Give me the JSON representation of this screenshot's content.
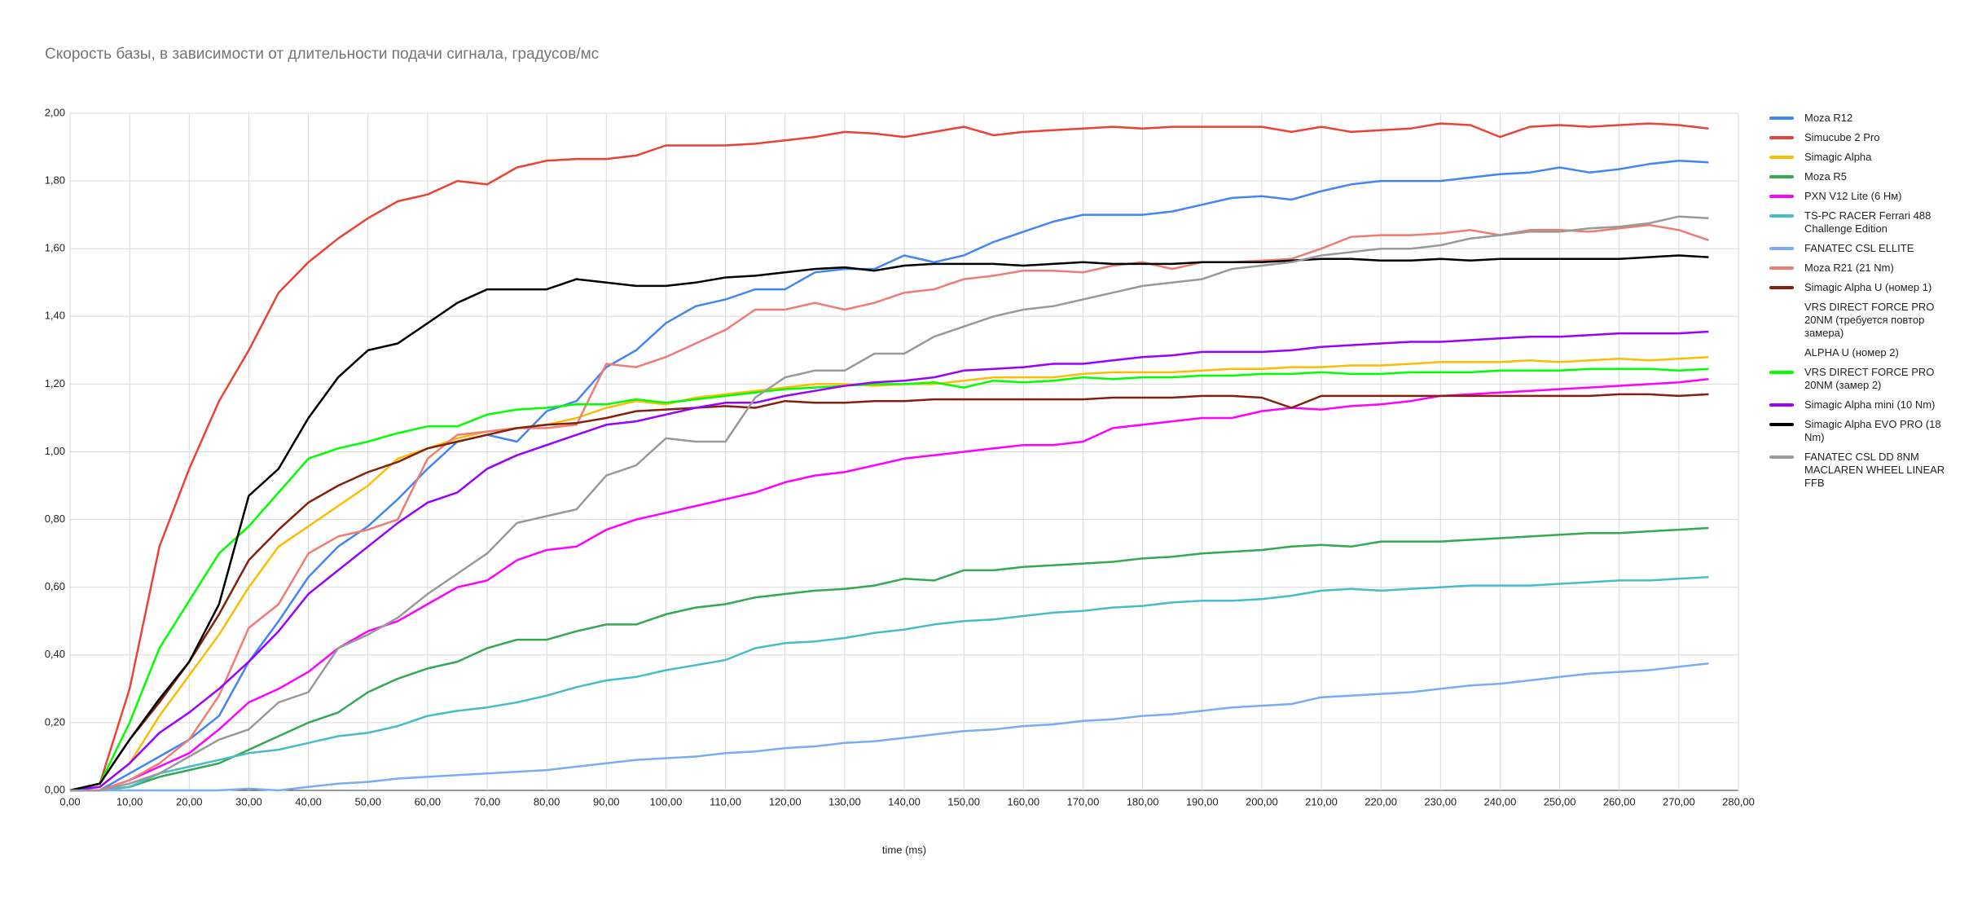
{
  "chart_data": {
    "type": "line",
    "title": "Скорость базы, в зависимости от длительности подачи сигнала, градусов/мс",
    "x_label": "time (ms)",
    "x": [
      0,
      5,
      10,
      15,
      20,
      25,
      30,
      35,
      40,
      45,
      50,
      55,
      60,
      65,
      70,
      75,
      80,
      85,
      90,
      95,
      100,
      105,
      110,
      115,
      120,
      125,
      130,
      135,
      140,
      145,
      150,
      155,
      160,
      165,
      170,
      175,
      180,
      185,
      190,
      195,
      200,
      205,
      210,
      215,
      220,
      225,
      230,
      235,
      240,
      245,
      250,
      255,
      260,
      265,
      270,
      275
    ],
    "xlim": [
      0,
      280
    ],
    "xticks": [
      {
        "value": 0,
        "label": "0,00"
      },
      {
        "value": 10,
        "label": "10,00"
      },
      {
        "value": 20,
        "label": "20,00"
      },
      {
        "value": 30,
        "label": "30,00"
      },
      {
        "value": 40,
        "label": "40,00"
      },
      {
        "value": 50,
        "label": "50,00"
      },
      {
        "value": 60,
        "label": "60,00"
      },
      {
        "value": 70,
        "label": "70,00"
      },
      {
        "value": 80,
        "label": "80,00"
      },
      {
        "value": 90,
        "label": "90,00"
      },
      {
        "value": 100,
        "label": "100,00"
      },
      {
        "value": 110,
        "label": "110,00"
      },
      {
        "value": 120,
        "label": "120,00"
      },
      {
        "value": 130,
        "label": "130,00"
      },
      {
        "value": 140,
        "label": "140,00"
      },
      {
        "value": 150,
        "label": "150,00"
      },
      {
        "value": 160,
        "label": "160,00"
      },
      {
        "value": 170,
        "label": "170,00"
      },
      {
        "value": 180,
        "label": "180,00"
      },
      {
        "value": 190,
        "label": "190,00"
      },
      {
        "value": 200,
        "label": "200,00"
      },
      {
        "value": 210,
        "label": "210,00"
      },
      {
        "value": 220,
        "label": "220,00"
      },
      {
        "value": 230,
        "label": "230,00"
      },
      {
        "value": 240,
        "label": "240,00"
      },
      {
        "value": 250,
        "label": "250,00"
      },
      {
        "value": 260,
        "label": "260,00"
      },
      {
        "value": 270,
        "label": "270,00"
      },
      {
        "value": 280,
        "label": "280,00"
      }
    ],
    "ylim": [
      0,
      2
    ],
    "yticks": [
      {
        "value": 0,
        "label": "0,00"
      },
      {
        "value": 0.2,
        "label": "0,20"
      },
      {
        "value": 0.4,
        "label": "0,40"
      },
      {
        "value": 0.6,
        "label": "0,60"
      },
      {
        "value": 0.8,
        "label": "0,80"
      },
      {
        "value": 1,
        "label": "1,00"
      },
      {
        "value": 1.2,
        "label": "1,20"
      },
      {
        "value": 1.4,
        "label": "1,40"
      },
      {
        "value": 1.6,
        "label": "1,60"
      },
      {
        "value": 1.8,
        "label": "1,80"
      },
      {
        "value": 2,
        "label": "2,00"
      }
    ],
    "grid": true,
    "legend": "right",
    "series": [
      {
        "name": "Moza R12",
        "color": "#4285f4",
        "values": [
          0,
          0,
          0.05,
          0.1,
          0.15,
          0.22,
          0.38,
          0.5,
          0.63,
          0.72,
          0.78,
          0.86,
          0.95,
          1.03,
          1.05,
          1.03,
          1.12,
          1.15,
          1.25,
          1.3,
          1.38,
          1.43,
          1.45,
          1.48,
          1.48,
          1.53,
          1.54,
          1.54,
          1.58,
          1.56,
          1.58,
          1.62,
          1.65,
          1.68,
          1.7,
          1.7,
          1.7,
          1.71,
          1.73,
          1.75,
          1.755,
          1.745,
          1.77,
          1.79,
          1.8,
          1.8,
          1.8,
          1.81,
          1.82,
          1.825,
          1.84,
          1.825,
          1.835,
          1.85,
          1.86,
          1.855
        ]
      },
      {
        "name": "Simucube 2 Pro",
        "color": "#ea4335",
        "values": [
          0,
          0.02,
          0.3,
          0.72,
          0.95,
          1.15,
          1.3,
          1.47,
          1.56,
          1.63,
          1.69,
          1.74,
          1.76,
          1.8,
          1.79,
          1.84,
          1.86,
          1.865,
          1.865,
          1.875,
          1.905,
          1.905,
          1.905,
          1.91,
          1.92,
          1.93,
          1.945,
          1.94,
          1.93,
          1.945,
          1.96,
          1.935,
          1.945,
          1.95,
          1.955,
          1.96,
          1.955,
          1.96,
          1.96,
          1.96,
          1.96,
          1.945,
          1.96,
          1.945,
          1.95,
          1.955,
          1.97,
          1.965,
          1.93,
          1.96,
          1.965,
          1.96,
          1.965,
          1.97,
          1.965,
          1.955
        ]
      },
      {
        "name": "Simagic Alpha",
        "color": "#fbbc04",
        "values": [
          0,
          0.01,
          0.08,
          0.22,
          0.34,
          0.46,
          0.6,
          0.72,
          0.78,
          0.84,
          0.9,
          0.98,
          1.01,
          1.04,
          1.06,
          1.07,
          1.08,
          1.1,
          1.13,
          1.15,
          1.14,
          1.16,
          1.17,
          1.18,
          1.19,
          1.2,
          1.2,
          1.195,
          1.2,
          1.2,
          1.21,
          1.22,
          1.22,
          1.22,
          1.23,
          1.235,
          1.235,
          1.235,
          1.24,
          1.245,
          1.245,
          1.25,
          1.25,
          1.255,
          1.255,
          1.26,
          1.265,
          1.265,
          1.265,
          1.27,
          1.265,
          1.27,
          1.275,
          1.27,
          1.275,
          1.28
        ]
      },
      {
        "name": "Moza R5",
        "color": "#34a853",
        "values": [
          0,
          0,
          0.01,
          0.04,
          0.06,
          0.08,
          0.12,
          0.16,
          0.2,
          0.23,
          0.29,
          0.33,
          0.36,
          0.38,
          0.42,
          0.445,
          0.445,
          0.47,
          0.49,
          0.49,
          0.52,
          0.54,
          0.55,
          0.57,
          0.58,
          0.59,
          0.595,
          0.605,
          0.625,
          0.62,
          0.65,
          0.65,
          0.66,
          0.665,
          0.67,
          0.675,
          0.685,
          0.69,
          0.7,
          0.705,
          0.71,
          0.72,
          0.725,
          0.72,
          0.735,
          0.735,
          0.735,
          0.74,
          0.745,
          0.75,
          0.755,
          0.76,
          0.76,
          0.765,
          0.77,
          0.775
        ]
      },
      {
        "name": "PXN V12 Lite (6 Нм)",
        "color": "#ff00ff",
        "values": [
          0,
          0,
          0.03,
          0.07,
          0.11,
          0.18,
          0.26,
          0.3,
          0.35,
          0.42,
          0.47,
          0.5,
          0.55,
          0.6,
          0.62,
          0.68,
          0.71,
          0.72,
          0.77,
          0.8,
          0.82,
          0.84,
          0.86,
          0.88,
          0.91,
          0.93,
          0.94,
          0.96,
          0.98,
          0.99,
          1,
          1.01,
          1.02,
          1.02,
          1.03,
          1.07,
          1.08,
          1.09,
          1.1,
          1.1,
          1.12,
          1.13,
          1.125,
          1.135,
          1.14,
          1.15,
          1.165,
          1.17,
          1.175,
          1.18,
          1.185,
          1.19,
          1.195,
          1.2,
          1.205,
          1.215
        ]
      },
      {
        "name": "TS-PC RACER Ferrari 488 Challenge Edition",
        "color": "#46bdc6",
        "values": [
          0,
          0,
          0.01,
          0.05,
          0.07,
          0.09,
          0.11,
          0.12,
          0.14,
          0.16,
          0.17,
          0.19,
          0.22,
          0.235,
          0.245,
          0.26,
          0.28,
          0.305,
          0.325,
          0.335,
          0.355,
          0.37,
          0.385,
          0.42,
          0.435,
          0.44,
          0.45,
          0.465,
          0.475,
          0.49,
          0.5,
          0.505,
          0.515,
          0.525,
          0.53,
          0.54,
          0.545,
          0.555,
          0.56,
          0.56,
          0.565,
          0.575,
          0.59,
          0.595,
          0.59,
          0.595,
          0.6,
          0.605,
          0.605,
          0.605,
          0.61,
          0.615,
          0.62,
          0.62,
          0.625,
          0.63
        ]
      },
      {
        "name": "FANATEC CSL ELLITE",
        "color": "#7baaf7",
        "values": [
          0,
          0,
          0,
          0,
          0,
          0,
          0.005,
          0,
          0.01,
          0.02,
          0.025,
          0.035,
          0.04,
          0.045,
          0.05,
          0.055,
          0.06,
          0.07,
          0.08,
          0.09,
          0.095,
          0.1,
          0.11,
          0.115,
          0.125,
          0.13,
          0.14,
          0.145,
          0.155,
          0.165,
          0.175,
          0.18,
          0.19,
          0.195,
          0.205,
          0.21,
          0.22,
          0.225,
          0.235,
          0.245,
          0.25,
          0.255,
          0.275,
          0.28,
          0.285,
          0.29,
          0.3,
          0.31,
          0.315,
          0.325,
          0.335,
          0.345,
          0.35,
          0.355,
          0.365,
          0.375
        ]
      },
      {
        "name": "Moza R21 (21 Nm)",
        "color": "#f07b72",
        "values": [
          0,
          0,
          0.03,
          0.08,
          0.15,
          0.28,
          0.48,
          0.55,
          0.7,
          0.75,
          0.77,
          0.8,
          0.98,
          1.05,
          1.06,
          1.07,
          1.07,
          1.08,
          1.26,
          1.25,
          1.28,
          1.32,
          1.36,
          1.42,
          1.42,
          1.44,
          1.42,
          1.44,
          1.47,
          1.48,
          1.51,
          1.52,
          1.535,
          1.535,
          1.53,
          1.55,
          1.56,
          1.54,
          1.56,
          1.56,
          1.565,
          1.57,
          1.6,
          1.635,
          1.64,
          1.64,
          1.645,
          1.655,
          1.64,
          1.655,
          1.655,
          1.65,
          1.66,
          1.67,
          1.655,
          1.625
        ]
      },
      {
        "name": "Simagic Alpha U (номер 1)",
        "color": "#85200c",
        "values": [
          0,
          0.02,
          0.15,
          0.26,
          0.38,
          0.52,
          0.68,
          0.77,
          0.85,
          0.9,
          0.94,
          0.97,
          1.01,
          1.03,
          1.05,
          1.07,
          1.08,
          1.085,
          1.1,
          1.12,
          1.125,
          1.13,
          1.135,
          1.13,
          1.15,
          1.145,
          1.145,
          1.15,
          1.15,
          1.155,
          1.155,
          1.155,
          1.155,
          1.155,
          1.155,
          1.16,
          1.16,
          1.16,
          1.165,
          1.165,
          1.16,
          1.13,
          1.165,
          1.165,
          1.165,
          1.165,
          1.165,
          1.165,
          1.165,
          1.165,
          1.165,
          1.165,
          1.17,
          1.17,
          1.165,
          1.17
        ]
      },
      {
        "name": "VRS DIRECT FORCE PRO 20NM (требуется повтор замера)",
        "values": [
          null,
          null,
          null,
          null,
          null,
          null,
          null,
          null,
          null,
          null,
          null,
          null,
          null,
          null,
          null,
          null,
          null,
          null,
          null,
          null,
          null,
          null,
          null,
          null,
          null,
          null,
          null,
          null,
          null,
          null,
          null,
          null,
          null,
          null,
          null,
          null,
          null,
          null,
          null,
          null,
          null,
          null,
          null,
          null,
          null,
          null,
          null,
          null,
          null,
          null,
          null,
          null,
          null,
          null,
          null,
          null
        ]
      },
      {
        "name": "ALPHA U (номер 2)",
        "values": [
          null,
          null,
          null,
          null,
          null,
          null,
          null,
          null,
          null,
          null,
          null,
          null,
          null,
          null,
          null,
          null,
          null,
          null,
          null,
          null,
          null,
          null,
          null,
          null,
          null,
          null,
          null,
          null,
          null,
          null,
          null,
          null,
          null,
          null,
          null,
          null,
          null,
          null,
          null,
          null,
          null,
          null,
          null,
          null,
          null,
          null,
          null,
          null,
          null,
          null,
          null,
          null,
          null,
          null,
          null,
          null
        ]
      },
      {
        "name": "VRS DIRECT FORCE PRO 20NM (замер 2)",
        "color": "#00ff00",
        "values": [
          0,
          0.02,
          0.2,
          0.42,
          0.56,
          0.7,
          0.78,
          0.88,
          0.98,
          1.01,
          1.03,
          1.055,
          1.075,
          1.075,
          1.11,
          1.125,
          1.13,
          1.14,
          1.14,
          1.155,
          1.145,
          1.155,
          1.165,
          1.175,
          1.185,
          1.19,
          1.195,
          1.2,
          1.2,
          1.205,
          1.19,
          1.21,
          1.205,
          1.21,
          1.22,
          1.215,
          1.22,
          1.22,
          1.225,
          1.225,
          1.23,
          1.23,
          1.235,
          1.23,
          1.23,
          1.235,
          1.235,
          1.235,
          1.24,
          1.24,
          1.24,
          1.245,
          1.245,
          1.245,
          1.24,
          1.245
        ]
      },
      {
        "name": "Simagic Alpha mini (10 Nm)",
        "color": "#9900ff",
        "values": [
          0,
          0.01,
          0.08,
          0.17,
          0.23,
          0.3,
          0.38,
          0.47,
          0.58,
          0.65,
          0.72,
          0.79,
          0.85,
          0.88,
          0.95,
          0.99,
          1.02,
          1.05,
          1.08,
          1.09,
          1.11,
          1.13,
          1.145,
          1.145,
          1.165,
          1.18,
          1.195,
          1.205,
          1.21,
          1.22,
          1.24,
          1.245,
          1.25,
          1.26,
          1.26,
          1.27,
          1.28,
          1.285,
          1.295,
          1.295,
          1.295,
          1.3,
          1.31,
          1.315,
          1.32,
          1.325,
          1.325,
          1.33,
          1.335,
          1.34,
          1.34,
          1.345,
          1.35,
          1.35,
          1.35,
          1.355
        ]
      },
      {
        "name": "Simagic Alpha EVO PRO (18 Nm)",
        "color": "#000000",
        "values": [
          0,
          0.02,
          0.15,
          0.27,
          0.38,
          0.55,
          0.87,
          0.95,
          1.1,
          1.22,
          1.3,
          1.32,
          1.38,
          1.44,
          1.48,
          1.48,
          1.48,
          1.51,
          1.5,
          1.49,
          1.49,
          1.5,
          1.515,
          1.52,
          1.53,
          1.54,
          1.545,
          1.535,
          1.55,
          1.555,
          1.555,
          1.555,
          1.55,
          1.555,
          1.56,
          1.555,
          1.555,
          1.555,
          1.56,
          1.56,
          1.56,
          1.565,
          1.57,
          1.57,
          1.565,
          1.565,
          1.57,
          1.565,
          1.57,
          1.57,
          1.57,
          1.57,
          1.57,
          1.575,
          1.58,
          1.575
        ]
      },
      {
        "name": "FANATEC CSL DD 8NM MACLAREN WHEEL LINEAR FFB",
        "color": "#999999",
        "values": [
          0,
          0,
          0.02,
          0.05,
          0.1,
          0.15,
          0.18,
          0.26,
          0.29,
          0.42,
          0.46,
          0.51,
          0.58,
          0.64,
          0.7,
          0.79,
          0.81,
          0.83,
          0.93,
          0.96,
          1.04,
          1.03,
          1.03,
          1.16,
          1.22,
          1.24,
          1.24,
          1.29,
          1.29,
          1.34,
          1.37,
          1.4,
          1.42,
          1.43,
          1.45,
          1.47,
          1.49,
          1.5,
          1.51,
          1.54,
          1.55,
          1.56,
          1.58,
          1.59,
          1.6,
          1.6,
          1.61,
          1.63,
          1.64,
          1.65,
          1.65,
          1.66,
          1.665,
          1.675,
          1.695,
          1.69
        ]
      }
    ]
  }
}
